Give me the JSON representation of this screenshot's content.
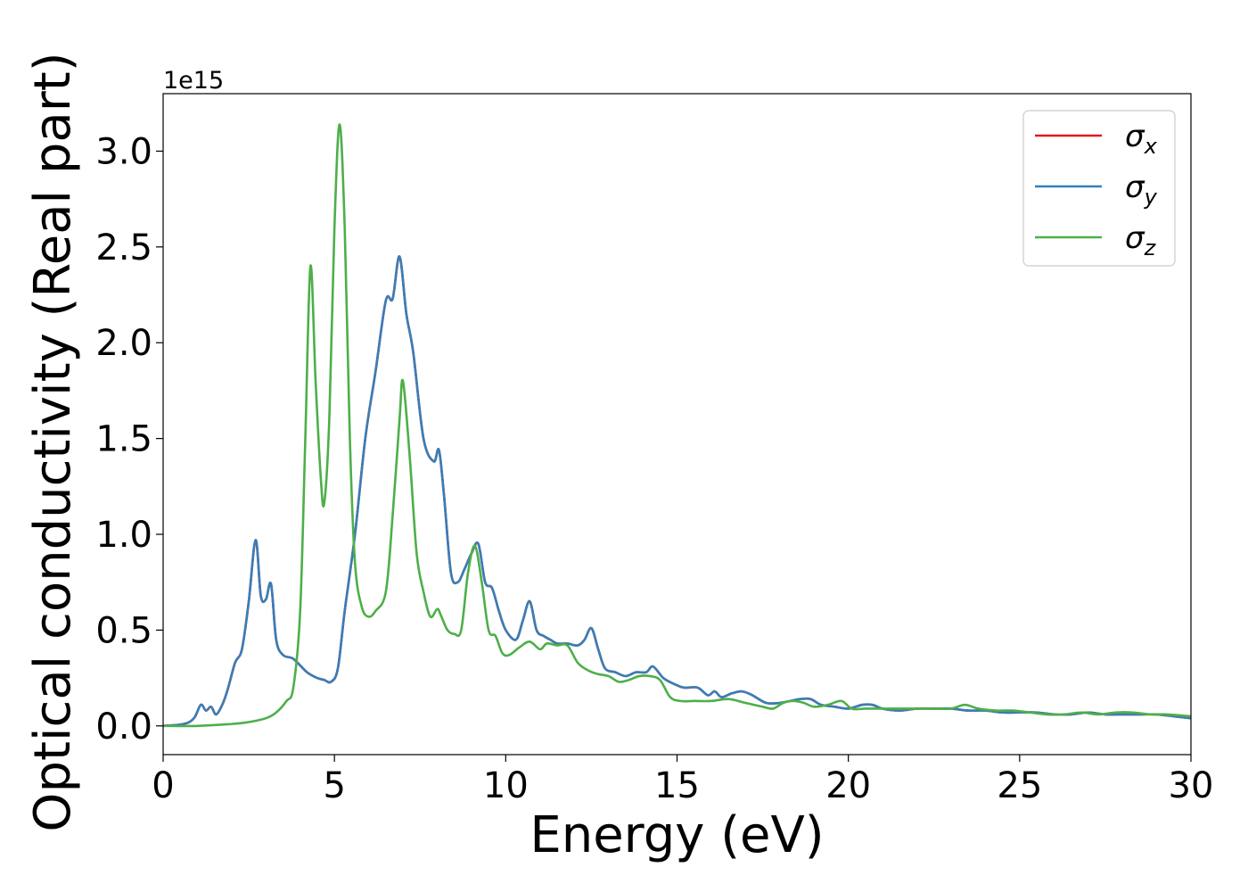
{
  "chart_data": {
    "type": "line",
    "xlabel": "Energy (eV)",
    "ylabel": "Optical conductivity (Real part)",
    "offset_text": "1e15",
    "xlim": [
      0,
      30
    ],
    "ylim": [
      -0.15,
      3.3
    ],
    "xticks": [
      0,
      5,
      10,
      15,
      20,
      25,
      30
    ],
    "xtick_labels": [
      "0",
      "5",
      "10",
      "15",
      "20",
      "25",
      "30"
    ],
    "yticks": [
      0.0,
      0.5,
      1.0,
      1.5,
      2.0,
      2.5,
      3.0
    ],
    "ytick_labels": [
      "0.0",
      "0.5",
      "1.0",
      "1.5",
      "2.0",
      "2.5",
      "3.0"
    ],
    "legend": "top-right",
    "grid": false,
    "series": [
      {
        "name": "σx",
        "symbol": "σ",
        "sub": "x",
        "color": "#e41a1c",
        "x": [
          0,
          0.6,
          0.9,
          1.1,
          1.25,
          1.4,
          1.55,
          1.75,
          1.9,
          2.1,
          2.3,
          2.5,
          2.7,
          2.85,
          3.0,
          3.15,
          3.3,
          3.5,
          3.8,
          4.2,
          4.5,
          4.7,
          4.9,
          5.1,
          5.3,
          5.6,
          5.9,
          6.2,
          6.5,
          6.7,
          6.9,
          7.1,
          7.3,
          7.6,
          7.9,
          8.05,
          8.2,
          8.4,
          8.6,
          8.8,
          9.0,
          9.2,
          9.4,
          9.6,
          9.8,
          10.0,
          10.3,
          10.5,
          10.7,
          10.9,
          11.1,
          11.3,
          11.5,
          11.8,
          12.1,
          12.3,
          12.5,
          12.7,
          12.9,
          13.2,
          13.5,
          13.8,
          14.1,
          14.3,
          14.6,
          14.9,
          15.2,
          15.6,
          15.9,
          16.1,
          16.3,
          16.6,
          16.9,
          17.2,
          17.6,
          18.0,
          18.3,
          18.6,
          18.9,
          19.2,
          19.6,
          20.0,
          20.4,
          20.7,
          21.0,
          21.5,
          22.0,
          22.5,
          23.0,
          23.5,
          24.0,
          24.5,
          25.0,
          25.5,
          26.0,
          26.5,
          27.0,
          27.5,
          28.0,
          28.5,
          29.0,
          29.5,
          30.0
        ],
        "y": [
          0.0,
          0.01,
          0.04,
          0.11,
          0.08,
          0.1,
          0.06,
          0.12,
          0.2,
          0.33,
          0.4,
          0.65,
          0.97,
          0.68,
          0.66,
          0.74,
          0.45,
          0.37,
          0.35,
          0.28,
          0.25,
          0.24,
          0.23,
          0.3,
          0.6,
          1.0,
          1.5,
          1.85,
          2.22,
          2.23,
          2.45,
          2.15,
          1.95,
          1.5,
          1.38,
          1.44,
          1.2,
          0.8,
          0.75,
          0.82,
          0.9,
          0.95,
          0.75,
          0.72,
          0.6,
          0.5,
          0.45,
          0.55,
          0.65,
          0.5,
          0.47,
          0.45,
          0.43,
          0.43,
          0.42,
          0.45,
          0.51,
          0.4,
          0.3,
          0.28,
          0.26,
          0.28,
          0.28,
          0.31,
          0.25,
          0.22,
          0.2,
          0.2,
          0.16,
          0.18,
          0.15,
          0.17,
          0.18,
          0.16,
          0.12,
          0.12,
          0.13,
          0.14,
          0.14,
          0.11,
          0.1,
          0.09,
          0.11,
          0.11,
          0.09,
          0.08,
          0.09,
          0.09,
          0.09,
          0.08,
          0.08,
          0.07,
          0.07,
          0.07,
          0.06,
          0.06,
          0.07,
          0.06,
          0.06,
          0.06,
          0.06,
          0.05,
          0.04
        ]
      },
      {
        "name": "σy",
        "symbol": "σ",
        "sub": "y",
        "color": "#377eb8",
        "x": [
          0,
          0.6,
          0.9,
          1.1,
          1.25,
          1.4,
          1.55,
          1.75,
          1.9,
          2.1,
          2.3,
          2.5,
          2.7,
          2.85,
          3.0,
          3.15,
          3.3,
          3.5,
          3.8,
          4.2,
          4.5,
          4.7,
          4.9,
          5.1,
          5.3,
          5.6,
          5.9,
          6.2,
          6.5,
          6.7,
          6.9,
          7.1,
          7.3,
          7.6,
          7.9,
          8.05,
          8.2,
          8.4,
          8.6,
          8.8,
          9.0,
          9.2,
          9.4,
          9.6,
          9.8,
          10.0,
          10.3,
          10.5,
          10.7,
          10.9,
          11.1,
          11.3,
          11.5,
          11.8,
          12.1,
          12.3,
          12.5,
          12.7,
          12.9,
          13.2,
          13.5,
          13.8,
          14.1,
          14.3,
          14.6,
          14.9,
          15.2,
          15.6,
          15.9,
          16.1,
          16.3,
          16.6,
          16.9,
          17.2,
          17.6,
          18.0,
          18.3,
          18.6,
          18.9,
          19.2,
          19.6,
          20.0,
          20.4,
          20.7,
          21.0,
          21.5,
          22.0,
          22.5,
          23.0,
          23.5,
          24.0,
          24.5,
          25.0,
          25.5,
          26.0,
          26.5,
          27.0,
          27.5,
          28.0,
          28.5,
          29.0,
          29.5,
          30.0
        ],
        "y": [
          0.0,
          0.01,
          0.04,
          0.11,
          0.08,
          0.1,
          0.06,
          0.12,
          0.2,
          0.33,
          0.4,
          0.65,
          0.97,
          0.68,
          0.66,
          0.74,
          0.45,
          0.37,
          0.35,
          0.28,
          0.25,
          0.24,
          0.23,
          0.3,
          0.6,
          1.0,
          1.5,
          1.85,
          2.22,
          2.23,
          2.45,
          2.15,
          1.95,
          1.5,
          1.38,
          1.44,
          1.2,
          0.8,
          0.75,
          0.82,
          0.9,
          0.95,
          0.75,
          0.72,
          0.6,
          0.5,
          0.45,
          0.55,
          0.65,
          0.5,
          0.47,
          0.45,
          0.43,
          0.43,
          0.42,
          0.45,
          0.51,
          0.4,
          0.3,
          0.28,
          0.26,
          0.28,
          0.28,
          0.31,
          0.25,
          0.22,
          0.2,
          0.2,
          0.16,
          0.18,
          0.15,
          0.17,
          0.18,
          0.16,
          0.12,
          0.12,
          0.13,
          0.14,
          0.14,
          0.11,
          0.1,
          0.09,
          0.11,
          0.11,
          0.09,
          0.08,
          0.09,
          0.09,
          0.09,
          0.08,
          0.08,
          0.07,
          0.07,
          0.07,
          0.06,
          0.06,
          0.07,
          0.06,
          0.06,
          0.06,
          0.06,
          0.05,
          0.04
        ]
      },
      {
        "name": "σz",
        "symbol": "σ",
        "sub": "z",
        "color": "#4daf4a",
        "x": [
          0,
          1.0,
          2.0,
          2.5,
          3.0,
          3.3,
          3.6,
          3.8,
          4.0,
          4.15,
          4.3,
          4.45,
          4.6,
          4.7,
          4.85,
          5.0,
          5.15,
          5.3,
          5.45,
          5.6,
          5.8,
          6.0,
          6.2,
          6.5,
          6.7,
          6.9,
          7.0,
          7.2,
          7.4,
          7.6,
          7.8,
          8.0,
          8.1,
          8.3,
          8.5,
          8.7,
          8.9,
          9.1,
          9.3,
          9.5,
          9.7,
          9.9,
          10.1,
          10.4,
          10.7,
          11.0,
          11.2,
          11.5,
          11.8,
          12.1,
          12.4,
          12.7,
          13.0,
          13.3,
          13.6,
          13.9,
          14.2,
          14.5,
          14.8,
          15.1,
          15.5,
          16.0,
          16.5,
          17.0,
          17.5,
          17.8,
          18.1,
          18.4,
          18.7,
          19.0,
          19.4,
          19.8,
          20.1,
          20.5,
          21.0,
          21.5,
          22.0,
          22.5,
          23.0,
          23.4,
          23.8,
          24.3,
          24.8,
          25.3,
          25.8,
          26.3,
          26.8,
          27.3,
          27.8,
          28.3,
          28.8,
          29.3,
          30.0
        ],
        "y": [
          0.0,
          0.0,
          0.01,
          0.02,
          0.04,
          0.07,
          0.13,
          0.2,
          0.6,
          1.5,
          2.4,
          1.8,
          1.3,
          1.16,
          1.6,
          2.6,
          3.14,
          2.6,
          1.5,
          0.85,
          0.62,
          0.57,
          0.6,
          0.7,
          1.1,
          1.6,
          1.8,
          1.4,
          0.9,
          0.7,
          0.57,
          0.61,
          0.58,
          0.5,
          0.48,
          0.5,
          0.8,
          0.94,
          0.75,
          0.5,
          0.47,
          0.38,
          0.37,
          0.41,
          0.44,
          0.4,
          0.43,
          0.42,
          0.42,
          0.33,
          0.29,
          0.27,
          0.26,
          0.23,
          0.24,
          0.26,
          0.26,
          0.24,
          0.15,
          0.13,
          0.13,
          0.13,
          0.14,
          0.12,
          0.1,
          0.09,
          0.12,
          0.13,
          0.12,
          0.1,
          0.11,
          0.13,
          0.09,
          0.09,
          0.09,
          0.09,
          0.09,
          0.09,
          0.09,
          0.11,
          0.09,
          0.08,
          0.08,
          0.07,
          0.06,
          0.06,
          0.07,
          0.06,
          0.07,
          0.07,
          0.06,
          0.06,
          0.05
        ]
      }
    ]
  }
}
